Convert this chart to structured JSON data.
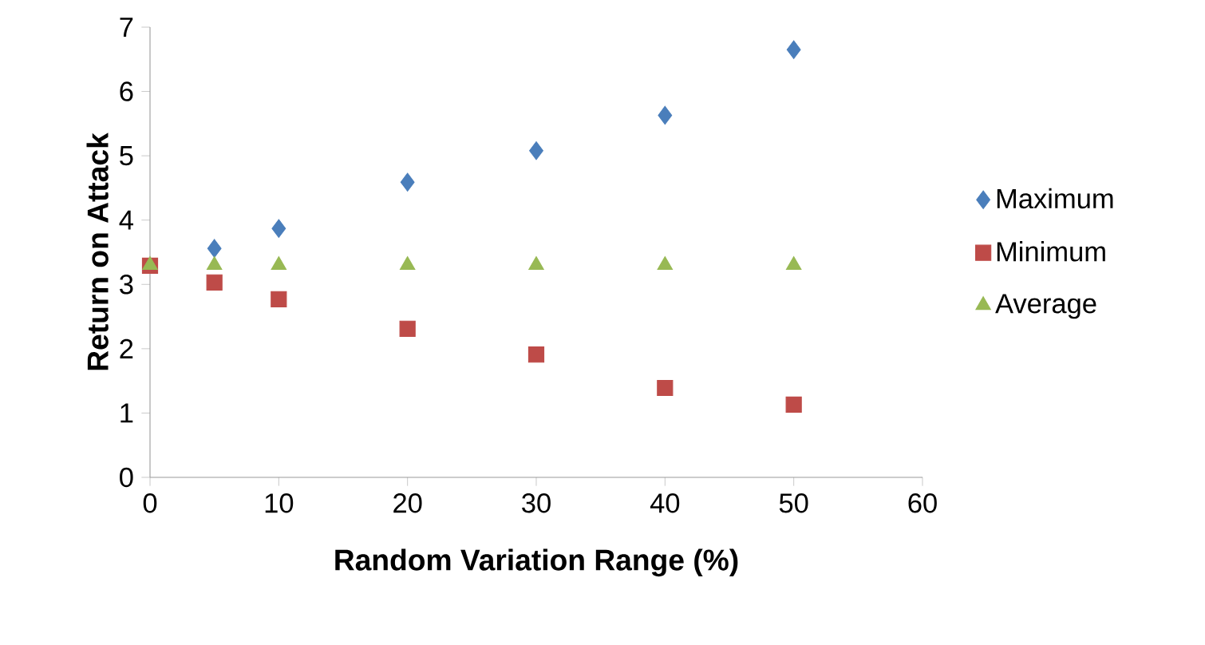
{
  "chart_data": {
    "type": "scatter",
    "xlabel": "Random Variation Range (%)",
    "ylabel": "Return on Attack",
    "x": [
      0,
      5,
      10,
      20,
      30,
      40,
      50
    ],
    "series": [
      {
        "name": "Maximum",
        "color": "#4a7ebb",
        "marker": "diamond",
        "values": [
          null,
          3.56,
          3.87,
          4.59,
          5.08,
          5.63,
          6.65
        ]
      },
      {
        "name": "Minimum",
        "color": "#be4b48",
        "marker": "square",
        "values": [
          3.29,
          3.03,
          2.77,
          2.31,
          1.91,
          1.39,
          1.13
        ]
      },
      {
        "name": "Average",
        "color": "#98b954",
        "marker": "triangle",
        "values": [
          3.3,
          3.3,
          3.3,
          3.3,
          3.3,
          3.3,
          3.3
        ]
      }
    ],
    "xlim": [
      0,
      60
    ],
    "xticks": [
      0,
      10,
      20,
      30,
      40,
      50,
      60
    ],
    "ylim": [
      0,
      7
    ],
    "yticks": [
      0,
      1,
      2,
      3,
      4,
      5,
      6,
      7
    ],
    "grid": false,
    "legend": "right"
  }
}
